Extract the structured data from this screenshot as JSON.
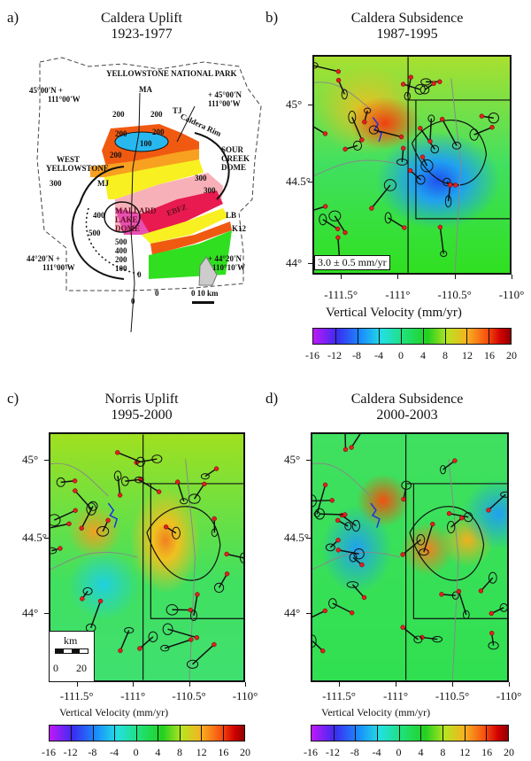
{
  "panels": [
    {
      "label": "a)",
      "title": [
        "Caldera Uplift",
        "1923-1977"
      ],
      "map_labels": {
        "park": "YELLOWSTONE NATIONAL PARK",
        "nw_lat": "45°00'N +",
        "nw_lon": "111°00'W",
        "ne_lat": "+ 45°00'N",
        "ne_lon": "111°00'W",
        "sw_lat": "44°20'N +",
        "sw_lon": "111°00'W",
        "se_lat": "+ 44°20'N",
        "se_lon": "110°10'W",
        "ma": "MA",
        "tj": "TJ",
        "west_yellowstone": [
          "WEST",
          "YELLOWSTONE"
        ],
        "caldera_rim": "Caldera Rim",
        "sour_creek": [
          "SOUR",
          "CREEK",
          "DOME"
        ],
        "mallard": [
          "MALLARD",
          "LAKE",
          "DOME"
        ],
        "ebfz": "EBFZ",
        "lb": "LB",
        "k12": "K12",
        "mj": "MJ",
        "scale": "0    10 km",
        "contours": [
          "200",
          "200",
          "200",
          "200",
          "100",
          "200",
          "300",
          "400",
          "500",
          "500",
          "400",
          "200",
          "100",
          "0",
          "0",
          "0",
          "300",
          "300"
        ]
      }
    },
    {
      "label": "b)",
      "title": [
        "Caldera Subsidence",
        "1987-1995"
      ],
      "legend": "3.0 ± 0.5 mm/yr",
      "colorbar_title": "Vertical Velocity (mm/yr)"
    },
    {
      "label": "c)",
      "title": [
        "Norris Uplift",
        "1995-2000"
      ],
      "scale_label": "km",
      "scale_ticks": [
        "0",
        "20"
      ],
      "colorbar_title": "Vertical Velocity (mm/yr)"
    },
    {
      "label": "d)",
      "title": [
        "Caldera Subsidence",
        "2000-2003"
      ],
      "colorbar_title": "Vertical Velocity (mm/yr)"
    }
  ],
  "lat_ticks": [
    "45°",
    "44.5°",
    "44°"
  ],
  "lon_ticks": [
    "-111.5°",
    "-111°",
    "-110.5°",
    "-110°"
  ],
  "colorbar_ticks": [
    "-16",
    "-12",
    "-8",
    "-4",
    "0",
    "4",
    "8",
    "12",
    "16",
    "20"
  ]
}
